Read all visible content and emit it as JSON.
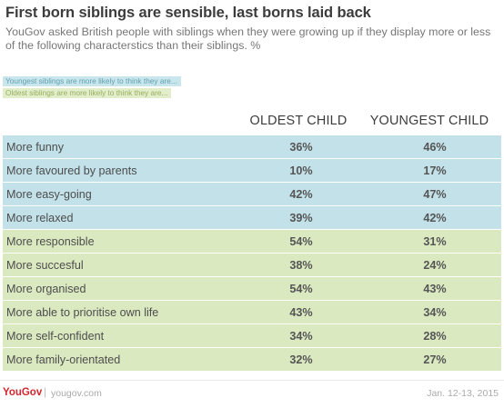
{
  "title": "First born siblings are sensible, last borns laid back",
  "subtitle": "YouGov asked British people with siblings when they were growing up if they display more or less of the following characterstics than their siblings. %",
  "legend": {
    "youngest": "Youngest siblings are more likely to think they are...",
    "oldest": "Oldest siblings are more likely to think they are..."
  },
  "colors": {
    "youngest_rows": "#c2e1e8",
    "oldest_rows": "#dbe9c1",
    "brand": "#d2262f"
  },
  "chart_data": {
    "type": "table",
    "columns": [
      "OLDEST CHILD",
      "YOUNGEST CHILD"
    ],
    "rows": [
      {
        "label": "More funny",
        "group": "youngest",
        "oldest": "36%",
        "youngest": "46%"
      },
      {
        "label": "More favoured by parents",
        "group": "youngest",
        "oldest": "10%",
        "youngest": "17%"
      },
      {
        "label": "More easy-going",
        "group": "youngest",
        "oldest": "42%",
        "youngest": "47%"
      },
      {
        "label": "More relaxed",
        "group": "youngest",
        "oldest": "39%",
        "youngest": "42%"
      },
      {
        "label": "More responsible",
        "group": "oldest",
        "oldest": "54%",
        "youngest": "31%"
      },
      {
        "label": "More succesful",
        "group": "oldest",
        "oldest": "38%",
        "youngest": "24%"
      },
      {
        "label": "More organised",
        "group": "oldest",
        "oldest": "54%",
        "youngest": "43%"
      },
      {
        "label": "More able to prioritise own life",
        "group": "oldest",
        "oldest": "43%",
        "youngest": "34%"
      },
      {
        "label": "More self-confident",
        "group": "oldest",
        "oldest": "34%",
        "youngest": "28%"
      },
      {
        "label": "More family-orientated",
        "group": "oldest",
        "oldest": "32%",
        "youngest": "27%"
      }
    ]
  },
  "footer": {
    "brand": "YouGov",
    "separator": "|",
    "url": "yougov.com",
    "date": "Jan. 12-13, 2015"
  }
}
